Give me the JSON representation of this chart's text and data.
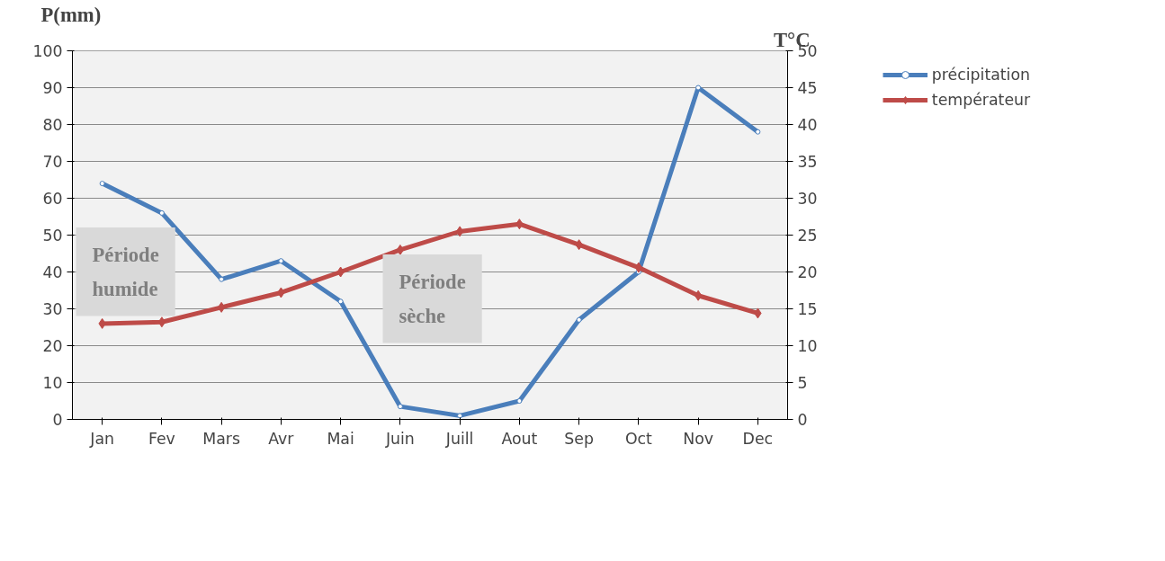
{
  "chart_data": {
    "type": "line",
    "categories": [
      "Jan",
      "Fev",
      "Mars",
      "Avr",
      "Mai",
      "Juin",
      "Juill",
      "Aout",
      "Sep",
      "Oct",
      "Nov",
      "Dec"
    ],
    "ylabel": "P(mm)",
    "y2label": "T°C",
    "series": [
      {
        "name": "précipitation",
        "color": "#4a7ebb",
        "marker": "circle",
        "values": [
          64,
          56,
          38,
          43,
          32,
          3.5,
          1,
          5,
          27,
          40,
          90,
          78
        ]
      },
      {
        "name": "températeur",
        "color": "#be4b48",
        "marker": "diamond",
        "axis": "y2",
        "values": [
          13,
          13.2,
          15.2,
          17.2,
          20,
          23,
          25.5,
          26.5,
          23.7,
          20.6,
          16.8,
          14.4
        ]
      }
    ],
    "ylim": [
      0,
      100
    ],
    "yticks": [
      0,
      10,
      20,
      30,
      40,
      50,
      60,
      70,
      80,
      90,
      100
    ],
    "y2lim": [
      0,
      50
    ],
    "y2ticks": [
      0,
      5,
      10,
      15,
      20,
      25,
      30,
      35,
      40,
      45,
      50
    ],
    "grid": "y",
    "legend": "top right",
    "line_style": "solid",
    "annotations": [
      "Période humide",
      "Période sèche"
    ]
  }
}
